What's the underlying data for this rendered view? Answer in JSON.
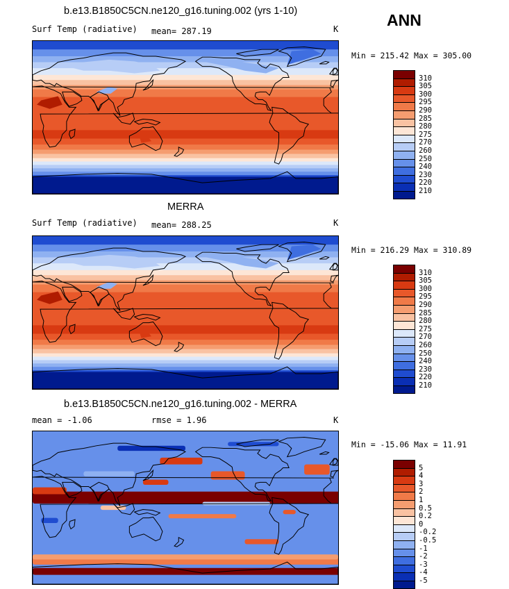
{
  "season": "ANN",
  "panels": [
    {
      "title": "b.e13.B1850C5CN.ne120_g16.tuning.002 (yrs 1-10)",
      "left_label": "Surf Temp (radiative)",
      "center_label": "mean= 287.19",
      "units": "K",
      "minmax": "Min = 215.42 Max = 305.00",
      "colorbar": {
        "labels": [
          "310",
          "305",
          "300",
          "295",
          "290",
          "285",
          "280",
          "275",
          "270",
          "260",
          "250",
          "240",
          "230",
          "220",
          "210"
        ],
        "colors": [
          "#7a0000",
          "#b01c00",
          "#d83a12",
          "#e8582a",
          "#f07a48",
          "#f59d70",
          "#f9c2a2",
          "#fde6d6",
          "#dce8fa",
          "#b7cdf6",
          "#8fb1f1",
          "#6690ea",
          "#3f6ee0",
          "#1f4cd0",
          "#0a2fb4",
          "#001a8e"
        ]
      },
      "map_type": "temperature"
    },
    {
      "title": "MERRA",
      "left_label": "Surf Temp (radiative)",
      "center_label": "mean= 288.25",
      "units": "K",
      "minmax": "Min = 216.29 Max = 310.89",
      "colorbar": {
        "labels": [
          "310",
          "305",
          "300",
          "295",
          "290",
          "285",
          "280",
          "275",
          "270",
          "260",
          "250",
          "240",
          "230",
          "220",
          "210"
        ],
        "colors": [
          "#7a0000",
          "#b01c00",
          "#d83a12",
          "#e8582a",
          "#f07a48",
          "#f59d70",
          "#f9c2a2",
          "#fde6d6",
          "#dce8fa",
          "#b7cdf6",
          "#8fb1f1",
          "#6690ea",
          "#3f6ee0",
          "#1f4cd0",
          "#0a2fb4",
          "#001a8e"
        ]
      },
      "map_type": "temperature"
    },
    {
      "title": "b.e13.B1850C5CN.ne120_g16.tuning.002 - MERRA",
      "left_label": "mean =  -1.06",
      "center_label": "rmse =   1.96",
      "units": "K",
      "minmax": "Min = -15.06 Max =  11.91",
      "colorbar": {
        "labels": [
          "5",
          "4",
          "3",
          "2",
          "1",
          "0.5",
          "0.2",
          "0",
          "-0.2",
          "-0.5",
          "-1",
          "-2",
          "-3",
          "-4",
          "-5"
        ],
        "colors": [
          "#7a0000",
          "#b01c00",
          "#d83a12",
          "#e8582a",
          "#f07a48",
          "#f59d70",
          "#f9c2a2",
          "#fde6d6",
          "#dce8fa",
          "#b7cdf6",
          "#8fb1f1",
          "#6690ea",
          "#3f6ee0",
          "#1f4cd0",
          "#0a2fb4",
          "#001a8e"
        ]
      },
      "map_type": "difference"
    }
  ]
}
